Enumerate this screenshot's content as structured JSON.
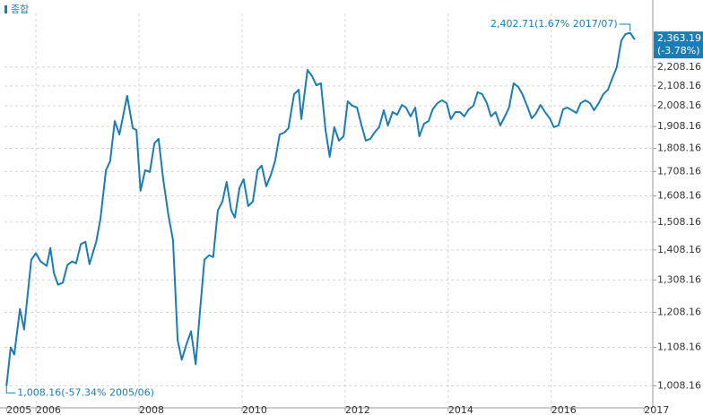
{
  "chart_data": {
    "type": "line",
    "log_scale_y": true,
    "grid": true,
    "legend_position": "top-left",
    "series": [
      {
        "name": "종합",
        "color": "#1a7db5",
        "x": [
          2005.43,
          2005.51,
          2005.58,
          2005.69,
          2005.77,
          2005.91,
          2006.0,
          2006.09,
          2006.21,
          2006.28,
          2006.35,
          2006.43,
          2006.52,
          2006.61,
          2006.7,
          2006.78,
          2006.87,
          2006.96,
          2007.04,
          2007.17,
          2007.25,
          2007.36,
          2007.44,
          2007.53,
          2007.62,
          2007.77,
          2007.88,
          2007.95,
          2008.03,
          2008.12,
          2008.21,
          2008.3,
          2008.38,
          2008.47,
          2008.57,
          2008.66,
          2008.75,
          2008.83,
          2008.92,
          2009.01,
          2009.1,
          2009.18,
          2009.27,
          2009.36,
          2009.44,
          2009.53,
          2009.62,
          2009.7,
          2009.79,
          2009.86,
          2009.95,
          2010.03,
          2010.12,
          2010.21,
          2010.3,
          2010.38,
          2010.47,
          2010.56,
          2010.64,
          2010.73,
          2010.82,
          2010.9,
          2011.01,
          2011.1,
          2011.15,
          2011.27,
          2011.36,
          2011.44,
          2011.53,
          2011.62,
          2011.7,
          2011.79,
          2011.88,
          2011.97,
          2012.05,
          2012.14,
          2012.23,
          2012.31,
          2012.4,
          2012.49,
          2012.57,
          2012.66,
          2012.75,
          2012.83,
          2012.92,
          2013.01,
          2013.1,
          2013.18,
          2013.27,
          2013.36,
          2013.44,
          2013.53,
          2013.62,
          2013.7,
          2013.79,
          2013.88,
          2013.97,
          2014.05,
          2014.14,
          2014.23,
          2014.31,
          2014.4,
          2014.49,
          2014.57,
          2014.66,
          2014.75,
          2014.83,
          2014.92,
          2015.01,
          2015.1,
          2015.18,
          2015.27,
          2015.36,
          2015.44,
          2015.53,
          2015.62,
          2015.7,
          2015.79,
          2015.88,
          2015.97,
          2016.05,
          2016.14,
          2016.23,
          2016.31,
          2016.4,
          2016.49,
          2016.57,
          2016.66,
          2016.75,
          2016.83,
          2016.92,
          2017.01,
          2017.1,
          2017.18,
          2017.27,
          2017.36,
          2017.44,
          2017.53,
          2017.62
        ],
        "values": [
          1008.16,
          1108,
          1089,
          1218,
          1158,
          1375,
          1397,
          1369,
          1354,
          1415,
          1330,
          1293,
          1299,
          1357,
          1369,
          1363,
          1428,
          1437,
          1360,
          1437,
          1518,
          1714,
          1752,
          1934,
          1871,
          2058,
          1900,
          1892,
          1629,
          1714,
          1706,
          1831,
          1851,
          1676,
          1535,
          1443,
          1128,
          1075,
          1116,
          1153,
          1063,
          1205,
          1375,
          1390,
          1384,
          1552,
          1587,
          1665,
          1552,
          1525,
          1640,
          1676,
          1569,
          1587,
          1714,
          1733,
          1647,
          1695,
          1752,
          1871,
          1880,
          1900,
          2066,
          2089,
          1943,
          2193,
          2159,
          2112,
          2122,
          1892,
          1771,
          1905,
          1843,
          1863,
          2030,
          2008,
          1999,
          1921,
          1843,
          1851,
          1880,
          1905,
          1986,
          1913,
          1977,
          1964,
          2012,
          1999,
          1956,
          1999,
          1863,
          1921,
          1934,
          1991,
          2021,
          2035,
          2021,
          1943,
          1977,
          1977,
          1956,
          1991,
          2008,
          2076,
          2066,
          2021,
          1956,
          1977,
          1913,
          1956,
          1999,
          2122,
          2103,
          2066,
          2008,
          1947,
          1969,
          2012,
          1977,
          1947,
          1905,
          1913,
          1991,
          1999,
          1986,
          1973,
          2021,
          2035,
          2021,
          1986,
          2021,
          2066,
          2089,
          2145,
          2207,
          2358,
          2395,
          2402.71,
          2363.19
        ]
      }
    ],
    "xlim": [
      2005.39,
      2017.97
    ],
    "xticks": [
      {
        "value": 2005.43,
        "label": "2005"
      },
      2006,
      2008,
      2010,
      2012,
      2014,
      2016,
      {
        "value": 2017.8,
        "label": "2017"
      }
    ],
    "ylim": [
      955,
      2520
    ],
    "yticks": [
      {
        "value": 1008.16,
        "label": "1,008.16"
      },
      {
        "value": 1108.16,
        "label": "1,108.16"
      },
      {
        "value": 1208.16,
        "label": "1,208.16"
      },
      {
        "value": 1308.16,
        "label": "1,308.16"
      },
      {
        "value": 1408.16,
        "label": "1,408.16"
      },
      {
        "value": 1508.16,
        "label": "1,508.16"
      },
      {
        "value": 1608.16,
        "label": "1,608.16"
      },
      {
        "value": 1708.16,
        "label": "1,708.16"
      },
      {
        "value": 1808.16,
        "label": "1,808.16"
      },
      {
        "value": 1908.16,
        "label": "1,908.16"
      },
      {
        "value": 2008.16,
        "label": "2,008.16"
      },
      {
        "value": 2108.16,
        "label": "2,108.16"
      },
      {
        "value": 2208.16,
        "label": "2,208.16"
      }
    ],
    "annotations": [
      {
        "text": "2,402.71(1.67% 2017/07)",
        "x": 2017.53,
        "y": 2402.71
      },
      {
        "text": "1,008.16(-57.34% 2005/06)",
        "x": 2005.43,
        "y": 1008.16
      }
    ],
    "last_value_label": {
      "value": 2363.19,
      "label": "2,363.19",
      "change": "(-3.78%)"
    }
  }
}
